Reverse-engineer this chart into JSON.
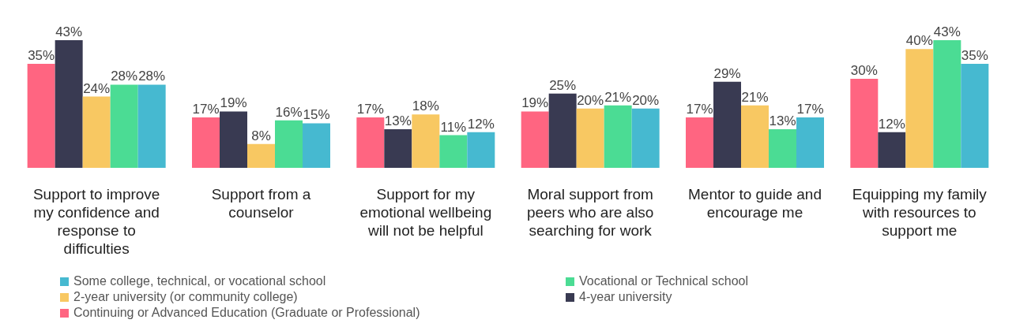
{
  "chart_data": {
    "type": "bar",
    "categories": [
      "Support to improve my confidence and response to difficulties",
      "Support from a counselor",
      "Support for my emotional wellbeing will not be helpful",
      "Moral support from peers who are also searching for work",
      "Mentor to guide and encourage me",
      "Equipping my family with resources to support me"
    ],
    "series": [
      {
        "name": "Continuing or Advanced Education (Graduate or Professional)",
        "color": "#ff6581",
        "values": [
          35,
          17,
          17,
          19,
          17,
          30
        ],
        "value_labels": [
          "35%",
          "17%",
          "17%",
          "19%",
          "17%",
          "30%"
        ]
      },
      {
        "name": "4-year university",
        "color": "#393a52",
        "values": [
          43,
          19,
          13,
          25,
          29,
          12
        ],
        "value_labels": [
          "43%",
          "19%",
          "13%",
          "25%",
          "29%",
          "12%"
        ]
      },
      {
        "name": "2-year university (or community college)",
        "color": "#f8c862",
        "values": [
          24,
          8,
          18,
          20,
          21,
          40
        ],
        "value_labels": [
          "24%",
          "8%",
          "18%",
          "20%",
          "21%",
          "40%"
        ]
      },
      {
        "name": "Vocational or Technical school",
        "color": "#4bdc94",
        "values": [
          28,
          16,
          11,
          21,
          13,
          43
        ],
        "value_labels": [
          "28%",
          "16%",
          "11%",
          "21%",
          "13%",
          "43%"
        ]
      },
      {
        "name": "Some college, technical, or vocational school",
        "color": "#46b9d0",
        "values": [
          28,
          15,
          12,
          20,
          17,
          35
        ],
        "value_labels": [
          "28%",
          "15%",
          "12%",
          "20%",
          "17%",
          "35%"
        ]
      }
    ],
    "legend": "bottom"
  }
}
